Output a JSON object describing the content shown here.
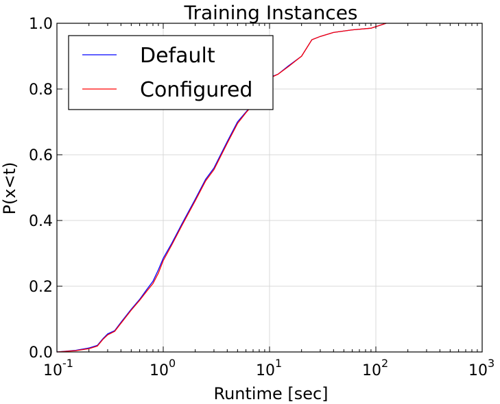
{
  "chart_data": {
    "type": "line",
    "title": "Training Instances",
    "xlabel": "Runtime [sec]",
    "ylabel": "P(x<t)",
    "xscale": "log",
    "xlim": [
      0.1,
      1000
    ],
    "ylim": [
      0.0,
      1.0
    ],
    "grid": true,
    "legend_position": "top-left",
    "x_tick_labels": [
      {
        "value": 0.1,
        "base": "10",
        "exp": "-1"
      },
      {
        "value": 1,
        "base": "10",
        "exp": "0"
      },
      {
        "value": 10,
        "base": "10",
        "exp": "1"
      },
      {
        "value": 100,
        "base": "10",
        "exp": "2"
      },
      {
        "value": 1000,
        "base": "10",
        "exp": "3"
      }
    ],
    "y_tick_labels": [
      {
        "value": 0.0,
        "label": "0.0"
      },
      {
        "value": 0.2,
        "label": "0.2"
      },
      {
        "value": 0.4,
        "label": "0.4"
      },
      {
        "value": 0.6,
        "label": "0.6"
      },
      {
        "value": 0.8,
        "label": "0.8"
      },
      {
        "value": 1.0,
        "label": "1.0"
      }
    ],
    "series": [
      {
        "name": "Default",
        "color": "#0000ff",
        "points": [
          [
            0.1,
            0.0
          ],
          [
            0.15,
            0.005
          ],
          [
            0.2,
            0.012
          ],
          [
            0.24,
            0.02
          ],
          [
            0.27,
            0.04
          ],
          [
            0.3,
            0.055
          ],
          [
            0.35,
            0.065
          ],
          [
            0.4,
            0.09
          ],
          [
            0.5,
            0.13
          ],
          [
            0.6,
            0.16
          ],
          [
            0.7,
            0.19
          ],
          [
            0.8,
            0.215
          ],
          [
            0.9,
            0.25
          ],
          [
            1.0,
            0.285
          ],
          [
            1.2,
            0.33
          ],
          [
            1.5,
            0.39
          ],
          [
            2.0,
            0.465
          ],
          [
            2.5,
            0.525
          ],
          [
            3.0,
            0.56
          ],
          [
            4.0,
            0.64
          ],
          [
            5.0,
            0.7
          ],
          [
            6.0,
            0.73
          ],
          [
            7.0,
            0.755
          ],
          [
            8.0,
            0.78
          ],
          [
            9.0,
            0.81
          ],
          [
            10.0,
            0.835
          ],
          [
            12.0,
            0.845
          ],
          [
            15.0,
            0.87
          ],
          [
            20.0,
            0.9
          ],
          [
            25.0,
            0.95
          ],
          [
            30.0,
            0.96
          ],
          [
            40.0,
            0.972
          ],
          [
            60.0,
            0.98
          ],
          [
            90.0,
            0.985
          ],
          [
            125.0,
            1.0
          ]
        ]
      },
      {
        "name": "Configured",
        "color": "#ff0000",
        "points": [
          [
            0.1,
            0.0
          ],
          [
            0.15,
            0.004
          ],
          [
            0.2,
            0.01
          ],
          [
            0.24,
            0.018
          ],
          [
            0.27,
            0.038
          ],
          [
            0.3,
            0.052
          ],
          [
            0.35,
            0.063
          ],
          [
            0.4,
            0.087
          ],
          [
            0.5,
            0.127
          ],
          [
            0.6,
            0.157
          ],
          [
            0.7,
            0.185
          ],
          [
            0.8,
            0.208
          ],
          [
            0.9,
            0.24
          ],
          [
            1.0,
            0.278
          ],
          [
            1.2,
            0.325
          ],
          [
            1.5,
            0.385
          ],
          [
            2.0,
            0.46
          ],
          [
            2.5,
            0.52
          ],
          [
            3.0,
            0.555
          ],
          [
            4.0,
            0.635
          ],
          [
            5.0,
            0.695
          ],
          [
            6.0,
            0.728
          ],
          [
            7.0,
            0.752
          ],
          [
            8.0,
            0.778
          ],
          [
            9.0,
            0.808
          ],
          [
            10.0,
            0.833
          ],
          [
            12.0,
            0.845
          ],
          [
            15.0,
            0.868
          ],
          [
            20.0,
            0.9
          ],
          [
            25.0,
            0.95
          ],
          [
            30.0,
            0.96
          ],
          [
            40.0,
            0.972
          ],
          [
            60.0,
            0.98
          ],
          [
            90.0,
            0.985
          ],
          [
            125.0,
            1.0
          ]
        ]
      }
    ]
  }
}
